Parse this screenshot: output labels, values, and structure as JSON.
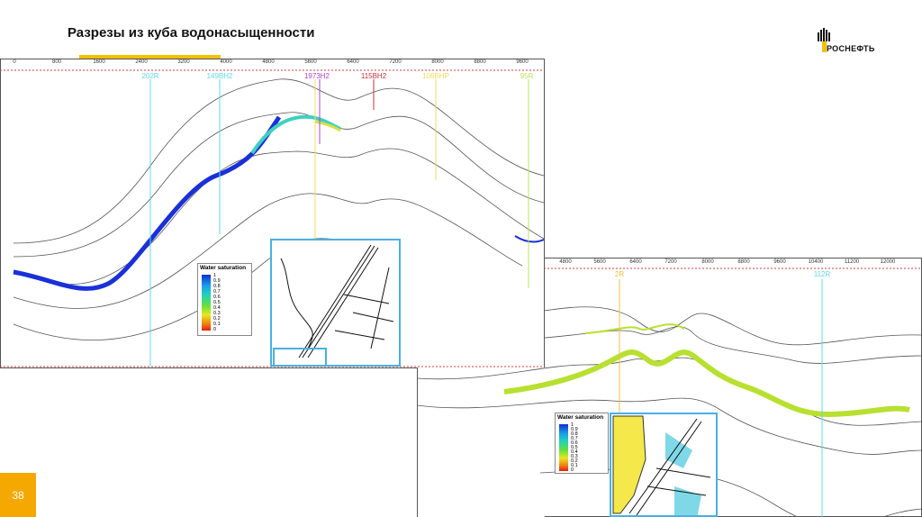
{
  "title": "Разрезы из куба водонасыщенности",
  "logo": {
    "text": "РОСНЕФТЬ",
    "color": "#f2c200"
  },
  "slide_number": "38",
  "accent_color": "#f2c200",
  "left_section": {
    "ruler": [
      "0",
      "800",
      "1600",
      "2400",
      "3200",
      "4000",
      "4800",
      "5600",
      "6400",
      "7200",
      "8000",
      "8800",
      "9600"
    ],
    "wells": [
      {
        "label": "202R",
        "color": "#5fd8e8"
      },
      {
        "label": "149BH2",
        "color": "#5fd8e8"
      },
      {
        "label": "1973H2",
        "color": "#b040d0"
      },
      {
        "label": "115BH2",
        "color": "#c03040"
      },
      {
        "label": "106BHP",
        "color": "#e8e060"
      },
      {
        "label": "95R",
        "color": "#c0e060"
      }
    ],
    "legend": {
      "title": "Water saturation",
      "labels": [
        "1",
        "0.9",
        "0.8",
        "0.7",
        "0.6",
        "0.5",
        "0.4",
        "0.3",
        "0.2",
        "0.1",
        "0"
      ]
    }
  },
  "right_section": {
    "ruler": [
      "4800",
      "5600",
      "6400",
      "7200",
      "8000",
      "8800",
      "9600",
      "10400",
      "11200",
      "12000"
    ],
    "wells": [
      {
        "label": "2R",
        "color": "#f0c040"
      },
      {
        "label": "112R",
        "color": "#5fd8e8"
      }
    ],
    "legend": {
      "title": "Water saturation",
      "labels": [
        "1",
        "0.9",
        "0.8",
        "0.7",
        "0.6",
        "0.5",
        "0.4",
        "0.3",
        "0.2",
        "0.1",
        "0"
      ]
    }
  }
}
